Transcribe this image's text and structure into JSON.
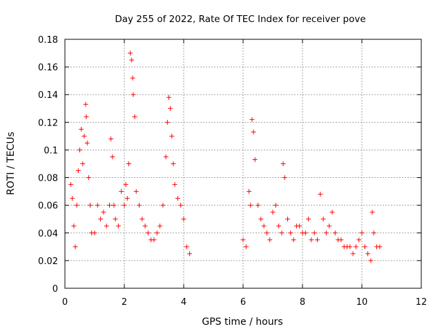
{
  "chart_data": {
    "type": "scatter",
    "title": "Day 255 of 2022, Rate Of TEC Index for receiver pove",
    "xlabel": "GPS time / hours",
    "ylabel": "ROTI / TECUs",
    "xlim": [
      0,
      12
    ],
    "ylim": [
      0,
      0.18
    ],
    "xticks": [
      "0",
      "2",
      "4",
      "6",
      "8",
      "10",
      "12"
    ],
    "yticks": [
      "0",
      "0.02",
      "0.04",
      "0.06",
      "0.08",
      "0.1",
      "0.12",
      "0.14",
      "0.16",
      "0.18"
    ],
    "grid": true,
    "marker": "plus",
    "color": "#ff0000",
    "series": [
      {
        "x": [
          0.2,
          0.25,
          0.3,
          0.35,
          0.4,
          0.45,
          0.5,
          0.55,
          0.6,
          0.65,
          0.7,
          0.72,
          0.75,
          0.8,
          0.85,
          0.9,
          1.0,
          1.1,
          1.2,
          1.3,
          1.4,
          1.5,
          1.55,
          1.6,
          1.65,
          1.7,
          1.8,
          1.9,
          2.0,
          2.05,
          2.1,
          2.15,
          2.2,
          2.25,
          2.28,
          2.3,
          2.35,
          2.4,
          2.5,
          2.6,
          2.7,
          2.8,
          2.9,
          3.0,
          3.1,
          3.2,
          3.3,
          3.4,
          3.45,
          3.5,
          3.55,
          3.6,
          3.65,
          3.7,
          3.8,
          3.9,
          4.0,
          4.1,
          4.2,
          6.0,
          6.1,
          6.2,
          6.25,
          6.3,
          6.35,
          6.4,
          6.5,
          6.6,
          6.7,
          6.8,
          6.9,
          7.0,
          7.1,
          7.2,
          7.3,
          7.35,
          7.4,
          7.5,
          7.6,
          7.7,
          7.8,
          7.9,
          8.0,
          8.1,
          8.2,
          8.3,
          8.4,
          8.5,
          8.6,
          8.7,
          8.8,
          8.9,
          9.0,
          9.1,
          9.2,
          9.3,
          9.4,
          9.5,
          9.6,
          9.7,
          9.8,
          9.9,
          10.0,
          10.1,
          10.2,
          10.3,
          10.35,
          10.4,
          10.5,
          10.6
        ],
        "y": [
          0.075,
          0.065,
          0.045,
          0.03,
          0.06,
          0.085,
          0.1,
          0.115,
          0.09,
          0.11,
          0.133,
          0.124,
          0.105,
          0.08,
          0.06,
          0.04,
          0.04,
          0.06,
          0.05,
          0.055,
          0.045,
          0.06,
          0.108,
          0.095,
          0.06,
          0.05,
          0.045,
          0.07,
          0.06,
          0.075,
          0.065,
          0.09,
          0.17,
          0.165,
          0.152,
          0.14,
          0.124,
          0.07,
          0.06,
          0.05,
          0.045,
          0.04,
          0.035,
          0.035,
          0.04,
          0.045,
          0.06,
          0.095,
          0.12,
          0.138,
          0.13,
          0.11,
          0.09,
          0.075,
          0.065,
          0.06,
          0.05,
          0.03,
          0.025,
          0.035,
          0.03,
          0.07,
          0.06,
          0.122,
          0.113,
          0.093,
          0.06,
          0.05,
          0.045,
          0.04,
          0.035,
          0.055,
          0.06,
          0.045,
          0.04,
          0.09,
          0.08,
          0.05,
          0.04,
          0.035,
          0.045,
          0.045,
          0.04,
          0.04,
          0.05,
          0.035,
          0.04,
          0.035,
          0.068,
          0.05,
          0.04,
          0.045,
          0.055,
          0.04,
          0.035,
          0.035,
          0.03,
          0.03,
          0.03,
          0.025,
          0.03,
          0.035,
          0.04,
          0.03,
          0.025,
          0.02,
          0.055,
          0.04,
          0.03,
          0.03
        ]
      }
    ]
  }
}
